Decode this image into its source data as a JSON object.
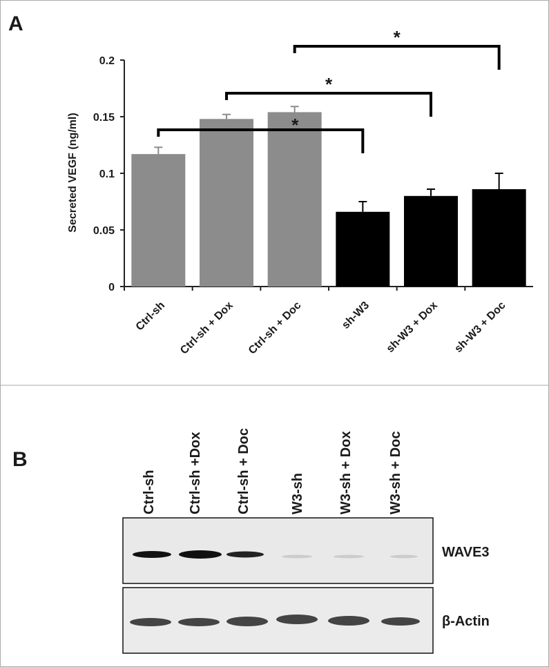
{
  "panel_labels": [
    "A",
    "B"
  ],
  "chart_data": {
    "type": "bar",
    "y_label": "Secreted VEGF (ng/ml)",
    "categories": [
      "Ctrl-sh",
      "Ctrl-sh + Dox",
      "Ctrl-sh + Doc",
      "sh-W3",
      "sh-W3 + Dox",
      "sh-W3 + Doc"
    ],
    "values": [
      0.117,
      0.148,
      0.154,
      0.066,
      0.08,
      0.086
    ],
    "errors": [
      0.006,
      0.004,
      0.005,
      0.009,
      0.006,
      0.014
    ],
    "colors": [
      "#8c8c8c",
      "#8c8c8c",
      "#8c8c8c",
      "#000000",
      "#000000",
      "#000000"
    ],
    "ylim": [
      0,
      0.2
    ],
    "yticks": [
      0,
      0.05,
      0.1,
      0.15,
      0.2
    ],
    "annotations": [
      {
        "label": "*",
        "from": 0,
        "to": 3
      },
      {
        "label": "*",
        "from": 1,
        "to": 4
      },
      {
        "label": "*",
        "from": 2,
        "to": 5
      }
    ]
  },
  "blot": {
    "lanes": [
      "Ctrl-sh",
      "Ctrl-sh +Dox",
      "Ctrl-sh + Doc",
      "W3-sh",
      "W3-sh + Dox",
      "W3-sh + Doc"
    ],
    "bands": [
      "WAVE3",
      "β-Actin"
    ]
  }
}
